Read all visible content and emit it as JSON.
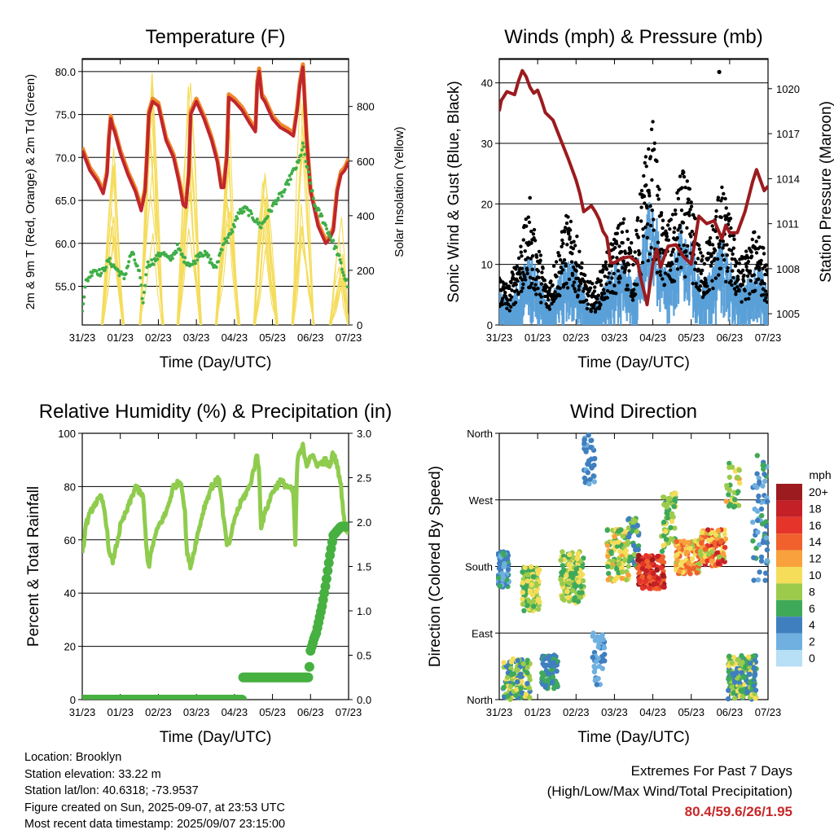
{
  "colors": {
    "temp_2m": "#c0262d",
    "temp_9m": "#f0882a",
    "dewpoint": "#3fae48",
    "solar": "#f5dc5a",
    "wind": "#5aa0d8",
    "gust": "#000000",
    "pressure": "#9b1b1e",
    "rh": "#8fcc4e",
    "precip": "#46b040"
  },
  "info": {
    "location": "Location: Brooklyn",
    "elevation": "Station elevation: 33.22 m",
    "latlon": "Station lat/lon: 40.6318; -73.9537",
    "created": "Figure created on Sun, 2025-09-07, at 23:53 UTC",
    "recent": "Most recent data timestamp: 2025/09/07 23:15:00"
  },
  "extremes": {
    "title": "Extremes For Past 7 Days",
    "subtitle": "(High/Low/Max Wind/Total Precipitation)",
    "values": "80.4/59.6/26/1.95"
  },
  "chart_data": [
    {
      "id": "temperature",
      "type": "line",
      "title": "Temperature (F)",
      "xlabel": "Time (Day/UTC)",
      "ylabel": "2m & 9m T (Red, Orange) & 2m Td (Green)",
      "y2label": "Solar Insolation (Yellow)",
      "xlim": [
        0,
        7
      ],
      "ylim": [
        50.5,
        81.5
      ],
      "y2lim": [
        0,
        975
      ],
      "xticks": [
        "31/23",
        "01/23",
        "02/23",
        "03/23",
        "04/23",
        "05/23",
        "06/23",
        "07/23"
      ],
      "yticks": [
        55,
        60,
        65,
        70,
        75,
        80
      ],
      "ytick_labels": [
        "55.0",
        "60.0",
        "65.0",
        "70.0",
        "75.0",
        "80.0"
      ],
      "y2ticks": [
        0,
        200,
        400,
        600,
        800
      ],
      "y2tick_labels": [
        "0",
        "200",
        "400",
        "600",
        "800"
      ],
      "grid": true,
      "series": [
        {
          "key": "t2m",
          "x": [
            0,
            0.2,
            0.4,
            0.55,
            0.65,
            0.7,
            0.75,
            0.8,
            0.85,
            1.0,
            1.2,
            1.4,
            1.55,
            1.65,
            1.7,
            1.75,
            1.85,
            2.0,
            2.2,
            2.4,
            2.55,
            2.65,
            2.72,
            2.8,
            2.85,
            3.0,
            3.2,
            3.4,
            3.55,
            3.65,
            3.72,
            3.8,
            3.85,
            4.0,
            4.2,
            4.4,
            4.55,
            4.6,
            4.65,
            4.72,
            4.8,
            4.9,
            5.0,
            5.2,
            5.4,
            5.55,
            5.65,
            5.72,
            5.8,
            5.9,
            6.0,
            6.2,
            6.4,
            6.5,
            6.6,
            6.7,
            6.8,
            6.9,
            7.0
          ],
          "y": [
            70.8,
            68.5,
            67.2,
            65.8,
            68,
            72,
            74.5,
            73.5,
            73,
            70.5,
            68,
            66,
            63.8,
            66,
            70,
            75,
            76.5,
            76,
            72,
            70,
            67,
            64.5,
            64.2,
            68,
            75,
            76.5,
            74.5,
            72,
            69.5,
            66.5,
            66.5,
            70,
            77,
            76.5,
            75.5,
            74,
            73,
            78.5,
            80,
            77,
            76.5,
            75.5,
            74.5,
            73.5,
            73,
            72.5,
            75.5,
            78.5,
            80.5,
            72,
            66,
            62,
            60,
            60.5,
            61.5,
            66,
            68,
            68.5,
            69.5
          ]
        },
        {
          "key": "td2m",
          "x": [
            0,
            0.1,
            0.3,
            0.5,
            0.7,
            0.9,
            1.1,
            1.3,
            1.5,
            1.6,
            1.7,
            1.9,
            2.1,
            2.3,
            2.5,
            2.7,
            2.9,
            3.1,
            3.3,
            3.5,
            3.7,
            3.9,
            4.1,
            4.3,
            4.5,
            4.7,
            4.9,
            5.1,
            5.3,
            5.5,
            5.7,
            5.8,
            5.9,
            6.0,
            6.1,
            6.3,
            6.5,
            6.7,
            6.9,
            7.0
          ],
          "y": [
            52.5,
            55.5,
            57,
            56.5,
            58,
            57,
            56,
            59,
            56.5,
            53,
            57.5,
            58,
            59,
            58,
            59.5,
            58,
            57.5,
            59,
            58.5,
            57,
            60,
            61,
            63.5,
            64,
            63,
            62,
            63.5,
            65,
            66,
            68,
            69.5,
            71.5,
            69,
            67,
            64.5,
            63,
            61,
            59,
            56,
            55
          ]
        },
        {
          "key": "solar",
          "days": [
            {
              "start": 0.52,
              "peak": 0.81,
              "end": 1.08,
              "max": 650
            },
            {
              "start": 1.52,
              "peak": 1.84,
              "end": 2.12,
              "max": 950
            },
            {
              "start": 2.52,
              "peak": 2.82,
              "end": 3.12,
              "max": 1000
            },
            {
              "start": 3.52,
              "peak": 3.83,
              "end": 4.12,
              "max": 750
            },
            {
              "start": 4.52,
              "peak": 4.78,
              "end": 5.12,
              "max": 560
            },
            {
              "start": 5.52,
              "peak": 5.78,
              "end": 6.08,
              "max": 850
            },
            {
              "start": 6.52,
              "peak": 6.8,
              "end": 7.0,
              "max": 400
            }
          ]
        }
      ]
    },
    {
      "id": "wind",
      "type": "line",
      "title": "Winds (mph) & Pressure (mb)",
      "xlabel": "Time (Day/UTC)",
      "ylabel": "Sonic Wind & Gust (Blue, Black)",
      "y2label": "Station Pressure (Maroon)",
      "xlim": [
        0,
        7
      ],
      "ylim": [
        0,
        44
      ],
      "y2lim": [
        1004.25,
        1022
      ],
      "xticks": [
        "31/23",
        "01/23",
        "02/23",
        "03/23",
        "04/23",
        "05/23",
        "06/23",
        "07/23"
      ],
      "yticks": [
        0,
        10,
        20,
        30,
        40
      ],
      "y2ticks": [
        1005,
        1008,
        1011,
        1014,
        1017,
        1020
      ],
      "grid": true,
      "series": [
        {
          "key": "pressure",
          "x": [
            0,
            0.05,
            0.2,
            0.4,
            0.5,
            0.6,
            0.7,
            0.8,
            0.9,
            1.0,
            1.1,
            1.2,
            1.4,
            1.6,
            1.8,
            2.0,
            2.1,
            2.2,
            2.4,
            2.5,
            2.6,
            2.7,
            2.8,
            2.9,
            3.0,
            3.2,
            3.4,
            3.5,
            3.6,
            3.7,
            3.8,
            3.85,
            3.9,
            4.0,
            4.1,
            4.2,
            4.4,
            4.6,
            4.8,
            5.0,
            5.2,
            5.4,
            5.6,
            5.8,
            5.9,
            6.0,
            6.2,
            6.4,
            6.6,
            6.7,
            6.8,
            6.9,
            7.0
          ],
          "y": [
            1018.5,
            1019.2,
            1019.8,
            1019.6,
            1020.5,
            1021.2,
            1020.8,
            1020.1,
            1019.7,
            1019.9,
            1019.2,
            1018.4,
            1017.9,
            1016.6,
            1015.3,
            1013.9,
            1013.0,
            1011.8,
            1012.2,
            1011.8,
            1011.3,
            1010.5,
            1010.1,
            1008.4,
            1008.4,
            1008.7,
            1008.8,
            1008.6,
            1008.5,
            1007.2,
            1006.2,
            1005.6,
            1006.5,
            1008.3,
            1009.3,
            1008.1,
            1009.5,
            1009.6,
            1008.8,
            1008.3,
            1011.5,
            1011.0,
            1011.2,
            1010.0,
            1010.9,
            1010.4,
            1010.4,
            1011.8,
            1013.8,
            1014.6,
            1013.9,
            1013.2,
            1013.5
          ]
        },
        {
          "key": "wind_envelope",
          "x": [
            0,
            0.25,
            0.5,
            0.75,
            1.0,
            1.25,
            1.5,
            1.75,
            2.0,
            2.25,
            2.5,
            2.75,
            3.0,
            3.25,
            3.5,
            3.75,
            4.0,
            4.25,
            4.5,
            4.75,
            5.0,
            5.25,
            5.5,
            5.75,
            6.0,
            6.25,
            6.5,
            6.75,
            7.0
          ],
          "y": [
            5,
            4,
            7,
            11,
            8,
            3,
            6,
            11,
            9,
            4,
            3,
            6,
            9,
            10,
            6,
            14,
            20,
            9,
            9,
            15,
            12,
            6,
            8,
            13,
            10,
            6,
            7,
            10,
            5
          ]
        },
        {
          "key": "gust_envelope",
          "x": [
            0,
            0.25,
            0.5,
            0.75,
            1.0,
            1.25,
            1.5,
            1.75,
            2.0,
            2.25,
            2.5,
            2.75,
            3.0,
            3.25,
            3.5,
            3.75,
            4.0,
            4.25,
            4.5,
            4.75,
            5.0,
            5.25,
            5.5,
            5.75,
            6.0,
            6.25,
            6.5,
            6.75,
            7.0
          ],
          "y": [
            8,
            6,
            12,
            17,
            13,
            6,
            11,
            17,
            14,
            7,
            6,
            10,
            14,
            17,
            11,
            24,
            31,
            16,
            16,
            24,
            20,
            11,
            14,
            22,
            17,
            10,
            12,
            16,
            8
          ]
        }
      ]
    },
    {
      "id": "humidity",
      "type": "line",
      "title": "Relative Humidity (%) & Precipitation (in)",
      "xlabel": "Time (Day/UTC)",
      "ylabel": "Percent & Total Rainfall",
      "xlim": [
        0,
        7
      ],
      "ylim": [
        0,
        100
      ],
      "y2lim": [
        0,
        3.0
      ],
      "xticks": [
        "31/23",
        "01/23",
        "02/23",
        "03/23",
        "04/23",
        "05/23",
        "06/23",
        "07/23"
      ],
      "yticks": [
        0,
        20,
        40,
        60,
        80,
        100
      ],
      "y2ticks": [
        0,
        0.5,
        1.0,
        1.5,
        2.0,
        2.5,
        3.0
      ],
      "y2tick_labels": [
        "0.0",
        "0.5",
        "1.0",
        "1.5",
        "2.0",
        "2.5",
        "3.0"
      ],
      "grid": true,
      "series": [
        {
          "key": "rh",
          "x": [
            0,
            0.1,
            0.3,
            0.5,
            0.6,
            0.72,
            0.8,
            0.9,
            1.0,
            1.2,
            1.4,
            1.6,
            1.7,
            1.75,
            1.85,
            2.0,
            2.2,
            2.4,
            2.6,
            2.7,
            2.75,
            2.85,
            3.0,
            3.2,
            3.4,
            3.6,
            3.7,
            3.8,
            3.9,
            4.0,
            4.2,
            4.4,
            4.6,
            4.65,
            4.7,
            4.8,
            5.0,
            5.2,
            5.4,
            5.55,
            5.6,
            5.65,
            5.8,
            5.9,
            6.0,
            6.2,
            6.4,
            6.5,
            6.6,
            6.7,
            6.8,
            6.9,
            7.0
          ],
          "y": [
            54,
            66,
            73,
            76,
            70,
            54,
            52,
            58,
            65,
            72,
            80,
            76,
            55,
            50,
            58,
            65,
            70,
            80,
            82,
            70,
            55,
            50,
            60,
            72,
            80,
            83,
            70,
            58,
            60,
            68,
            75,
            80,
            92,
            85,
            65,
            70,
            78,
            82,
            80,
            78,
            58,
            90,
            95,
            88,
            92,
            88,
            90,
            87,
            93,
            88,
            80,
            65,
            62
          ]
        },
        {
          "key": "precip",
          "x": [
            0,
            4.2,
            4.22,
            4.8,
            5.95,
            6.0,
            6.1,
            6.15,
            6.3,
            6.4,
            6.5,
            6.6,
            6.7,
            6.8,
            7.0
          ],
          "y": [
            0,
            0,
            0.25,
            0.25,
            0.25,
            0.55,
            0.7,
            0.75,
            1.05,
            1.3,
            1.6,
            1.85,
            1.9,
            1.95,
            1.95
          ]
        }
      ]
    },
    {
      "id": "direction",
      "type": "scatter",
      "title": "Wind Direction",
      "xlabel": "Time (Day/UTC)",
      "ylabel": "Direction (Colored By Speed)",
      "xlim": [
        0,
        7
      ],
      "ylim": [
        0,
        360
      ],
      "xticks": [
        "31/23",
        "01/23",
        "02/23",
        "03/23",
        "04/23",
        "05/23",
        "06/23",
        "07/23"
      ],
      "yticks": [
        0,
        90,
        180,
        270,
        360
      ],
      "ytick_labels": [
        "North",
        "East",
        "South",
        "West",
        "North"
      ],
      "grid": true,
      "legend_title": "mph",
      "legend_labels": [
        "20+",
        "18",
        "16",
        "14",
        "12",
        "10",
        "8",
        "6",
        "4",
        "2",
        "0"
      ],
      "legend_colors": [
        "#9c1b1f",
        "#c42027",
        "#e5352b",
        "#f0612d",
        "#f9a13c",
        "#f5dd5a",
        "#9ccb4c",
        "#3fa95a",
        "#3f7fbf",
        "#6fb0e0",
        "#b7dff6"
      ],
      "clusters": [
        {
          "x": [
            -0.05,
            0.25
          ],
          "dir": [
            150,
            200
          ],
          "speed": [
            2,
            6
          ],
          "n": 90
        },
        {
          "x": [
            0.1,
            0.8
          ],
          "dir": [
            0,
            55
          ],
          "speed": [
            3,
            11
          ],
          "n": 110
        },
        {
          "x": [
            0.6,
            1.05
          ],
          "dir": [
            120,
            180
          ],
          "speed": [
            5,
            11
          ],
          "n": 110
        },
        {
          "x": [
            1.1,
            1.55
          ],
          "dir": [
            15,
            60
          ],
          "speed": [
            3,
            7
          ],
          "n": 80
        },
        {
          "x": [
            1.6,
            2.2
          ],
          "dir": [
            130,
            200
          ],
          "speed": [
            5,
            11
          ],
          "n": 120
        },
        {
          "x": [
            2.2,
            2.5
          ],
          "dir": [
            290,
            360
          ],
          "speed": [
            2,
            5
          ],
          "n": 40
        },
        {
          "x": [
            2.4,
            2.75
          ],
          "dir": [
            20,
            90
          ],
          "speed": [
            1,
            5
          ],
          "n": 40
        },
        {
          "x": [
            2.8,
            3.4
          ],
          "dir": [
            160,
            230
          ],
          "speed": [
            6,
            12
          ],
          "n": 110
        },
        {
          "x": [
            3.35,
            3.65
          ],
          "dir": [
            180,
            250
          ],
          "speed": [
            3,
            8
          ],
          "n": 40
        },
        {
          "x": [
            3.6,
            4.3
          ],
          "dir": [
            150,
            195
          ],
          "speed": [
            13,
            20
          ],
          "n": 140
        },
        {
          "x": [
            4.2,
            4.6
          ],
          "dir": [
            200,
            280
          ],
          "speed": [
            5,
            10
          ],
          "n": 60
        },
        {
          "x": [
            4.6,
            5.2
          ],
          "dir": [
            170,
            215
          ],
          "speed": [
            8,
            15
          ],
          "n": 110
        },
        {
          "x": [
            5.2,
            5.9
          ],
          "dir": [
            180,
            230
          ],
          "speed": [
            8,
            18
          ],
          "n": 130
        },
        {
          "x": [
            5.9,
            6.3
          ],
          "dir": [
            260,
            320
          ],
          "speed": [
            5,
            12
          ],
          "n": 30
        },
        {
          "x": [
            5.95,
            6.7
          ],
          "dir": [
            0,
            60
          ],
          "speed": [
            3,
            10
          ],
          "n": 170
        },
        {
          "x": [
            6.6,
            7.0
          ],
          "dir": [
            150,
            330
          ],
          "speed": [
            2,
            6
          ],
          "n": 60
        }
      ]
    }
  ]
}
